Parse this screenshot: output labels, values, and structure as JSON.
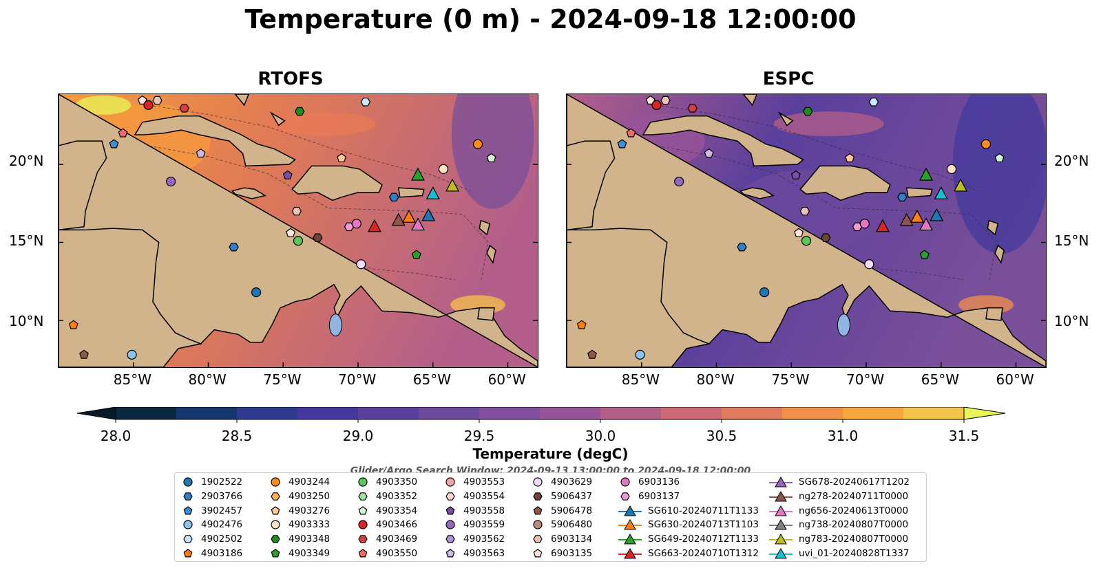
{
  "title": "Temperature (0 m) - 2024-09-18 12:00:00",
  "panels": [
    {
      "id": "rtofs",
      "title": "RTOFS",
      "palette": "warm"
    },
    {
      "id": "espc",
      "title": "ESPC",
      "palette": "cool"
    }
  ],
  "map": {
    "lon_range": [
      -90,
      -58
    ],
    "lat_range": [
      7,
      24.5
    ],
    "lon_ticks": [
      "85°W",
      "80°W",
      "75°W",
      "70°W",
      "65°W",
      "60°W"
    ],
    "lat_ticks": [
      "20°N",
      "15°N",
      "10°N"
    ],
    "land_color": "#d2b48c",
    "ocean_colors_rtofs": [
      "#b35f8a",
      "#e07b55",
      "#f59a3e"
    ],
    "ocean_colors_espc": [
      "#7a4f9a",
      "#5a3f9c",
      "#b35f8a"
    ]
  },
  "colorbar": {
    "label": "Temperature (degC)",
    "ticks": [
      "28.0",
      "28.5",
      "29.0",
      "29.5",
      "30.0",
      "30.5",
      "31.0",
      "31.5"
    ],
    "min": 28.0,
    "max": 31.5,
    "colors": [
      "#0b2a3f",
      "#14386e",
      "#2d3a8e",
      "#43399c",
      "#5a3f9c",
      "#6d4a9e",
      "#814f9d",
      "#985499",
      "#b35f8a",
      "#cd6876",
      "#e37b60",
      "#f28f49",
      "#f8a73d",
      "#f5c24a"
    ],
    "under_color": "#061a2a",
    "over_color": "#e8f558"
  },
  "search_window": "Glider/Argo Search Window: 2024-09-13 13:00:00 to 2024-09-18 12:00:00",
  "legend": [
    {
      "label": "1902522",
      "marker": "circle",
      "color": "#1f77b4"
    },
    {
      "label": "2903766",
      "marker": "hexagon",
      "color": "#2f7fc4"
    },
    {
      "label": "3902457",
      "marker": "pentagon",
      "color": "#3d8fd8"
    },
    {
      "label": "4902476",
      "marker": "circle",
      "color": "#8ec3f0"
    },
    {
      "label": "4902502",
      "marker": "hexagon",
      "color": "#c9e7ff"
    },
    {
      "label": "4903186",
      "marker": "pentagon",
      "color": "#ff7f0e"
    },
    {
      "label": "4903244",
      "marker": "circle",
      "color": "#ff8c1a"
    },
    {
      "label": "4903250",
      "marker": "hexagon",
      "color": "#ffae5c"
    },
    {
      "label": "4903276",
      "marker": "pentagon",
      "color": "#ffc896"
    },
    {
      "label": "4903333",
      "marker": "circle",
      "color": "#ffe3c4"
    },
    {
      "label": "4903348",
      "marker": "hexagon",
      "color": "#1a8f1a"
    },
    {
      "label": "4903349",
      "marker": "pentagon",
      "color": "#2ca02c"
    },
    {
      "label": "4903350",
      "marker": "circle",
      "color": "#5cc85c"
    },
    {
      "label": "4903352",
      "marker": "hexagon",
      "color": "#9fe59f"
    },
    {
      "label": "4903354",
      "marker": "pentagon",
      "color": "#d4f5d4"
    },
    {
      "label": "4903466",
      "marker": "circle",
      "color": "#d62728"
    },
    {
      "label": "4903469",
      "marker": "hexagon",
      "color": "#d64040"
    },
    {
      "label": "4903550",
      "marker": "pentagon",
      "color": "#ef6b6b"
    },
    {
      "label": "4903553",
      "marker": "circle",
      "color": "#f4a3a3"
    },
    {
      "label": "4903554",
      "marker": "hexagon",
      "color": "#fcd5d5"
    },
    {
      "label": "4903558",
      "marker": "pentagon",
      "color": "#7b4fa8"
    },
    {
      "label": "4903559",
      "marker": "circle",
      "color": "#9467bd"
    },
    {
      "label": "4903562",
      "marker": "hexagon",
      "color": "#b08fd4"
    },
    {
      "label": "4903563",
      "marker": "pentagon",
      "color": "#cfb8ea"
    },
    {
      "label": "4903629",
      "marker": "circle",
      "color": "#f0dcff"
    },
    {
      "label": "5906437",
      "marker": "hexagon",
      "color": "#6b4636"
    },
    {
      "label": "5906478",
      "marker": "pentagon",
      "color": "#8c5a4a"
    },
    {
      "label": "5906480",
      "marker": "circle",
      "color": "#b98b7c"
    },
    {
      "label": "6903134",
      "marker": "hexagon",
      "color": "#e8c3b6"
    },
    {
      "label": "6903135",
      "marker": "pentagon",
      "color": "#ffe5dc"
    },
    {
      "label": "6903136",
      "marker": "circle",
      "color": "#e377c2"
    },
    {
      "label": "6903137",
      "marker": "hexagon",
      "color": "#f09bd6"
    },
    {
      "label": "SG610-20240711T1133",
      "marker": "triangle-line",
      "color": "#1f77b4"
    },
    {
      "label": "SG630-20240713T1103",
      "marker": "triangle-line",
      "color": "#ff7f0e"
    },
    {
      "label": "SG649-20240712T1133",
      "marker": "triangle-line",
      "color": "#2ca02c"
    },
    {
      "label": "SG663-20240710T1312",
      "marker": "triangle-line",
      "color": "#d62728"
    },
    {
      "label": "SG678-20240617T1202",
      "marker": "triangle-line",
      "color": "#9467bd"
    },
    {
      "label": "ng278-20240711T0000",
      "marker": "triangle-line",
      "color": "#8c564b"
    },
    {
      "label": "ng656-20240613T0000",
      "marker": "triangle-line",
      "color": "#e377c2"
    },
    {
      "label": "ng738-20240807T0000",
      "marker": "triangle-line",
      "color": "#7f7f7f"
    },
    {
      "label": "ng783-20240807T0000",
      "marker": "triangle-line",
      "color": "#bcbd22"
    },
    {
      "label": "uvi_01-20240828T1337",
      "marker": "triangle-line",
      "color": "#17becf"
    }
  ],
  "floats": [
    {
      "label": "4903550",
      "lon": -85.7,
      "lat": 22.0
    },
    {
      "label": "3902457",
      "lon": -86.3,
      "lat": 21.3
    },
    {
      "label": "6903135",
      "lon": -84.4,
      "lat": 24.1
    },
    {
      "label": "6903134",
      "lon": -83.4,
      "lat": 24.1
    },
    {
      "label": "4903466",
      "lon": -84.0,
      "lat": 23.8
    },
    {
      "label": "4903469",
      "lon": -81.6,
      "lat": 23.6
    },
    {
      "label": "4903348",
      "lon": -73.9,
      "lat": 23.4
    },
    {
      "label": "4902502",
      "lon": -69.5,
      "lat": 24.0
    },
    {
      "label": "4903563",
      "lon": -80.5,
      "lat": 20.7
    },
    {
      "label": "4903559",
      "lon": -82.5,
      "lat": 18.9
    },
    {
      "label": "4903558",
      "lon": -74.7,
      "lat": 19.3
    },
    {
      "label": "4903276",
      "lon": -71.1,
      "lat": 20.4
    },
    {
      "label": "2903766",
      "lon": -67.6,
      "lat": 17.9
    },
    {
      "label": "4903333",
      "lon": -64.3,
      "lat": 19.7
    },
    {
      "label": "4903244",
      "lon": -62.0,
      "lat": 21.3
    },
    {
      "label": "4903354",
      "lon": -61.1,
      "lat": 20.4
    },
    {
      "label": "6903134",
      "lon": -74.1,
      "lat": 17.0
    },
    {
      "label": "6903135",
      "lon": -74.5,
      "lat": 15.6
    },
    {
      "label": "4903350",
      "lon": -74.0,
      "lat": 15.1
    },
    {
      "label": "5906437",
      "lon": -72.7,
      "lat": 15.3
    },
    {
      "label": "2903766",
      "lon": -78.3,
      "lat": 14.7
    },
    {
      "label": "1902522",
      "lon": -76.8,
      "lat": 11.8
    },
    {
      "label": "6903137",
      "lon": -70.6,
      "lat": 16.0
    },
    {
      "label": "6903136",
      "lon": -70.1,
      "lat": 16.2
    },
    {
      "label": "4903629",
      "lon": -69.8,
      "lat": 13.6
    },
    {
      "label": "4903349",
      "lon": -66.1,
      "lat": 14.2
    },
    {
      "label": "4903186",
      "lon": -89.0,
      "lat": 9.7
    },
    {
      "label": "5906478",
      "lon": -88.3,
      "lat": 7.8
    },
    {
      "label": "4902476",
      "lon": -85.1,
      "lat": 7.8
    }
  ],
  "gliders": [
    {
      "label": "SG649-20240712T1133",
      "lon": -66.0,
      "lat": 19.3
    },
    {
      "label": "uvi_01-20240828T1337",
      "lon": -65.0,
      "lat": 18.1
    },
    {
      "label": "ng783-20240807T0000",
      "lon": -63.7,
      "lat": 18.6
    },
    {
      "label": "SG663-20240710T1312",
      "lon": -68.9,
      "lat": 16.0
    },
    {
      "label": "ng278-20240711T0000",
      "lon": -67.3,
      "lat": 16.4
    },
    {
      "label": "SG630-20240713T1103",
      "lon": -66.6,
      "lat": 16.6
    },
    {
      "label": "ng656-20240613T0000",
      "lon": -66.0,
      "lat": 16.1
    },
    {
      "label": "SG610-20240711T1133",
      "lon": -65.3,
      "lat": 16.7
    }
  ]
}
